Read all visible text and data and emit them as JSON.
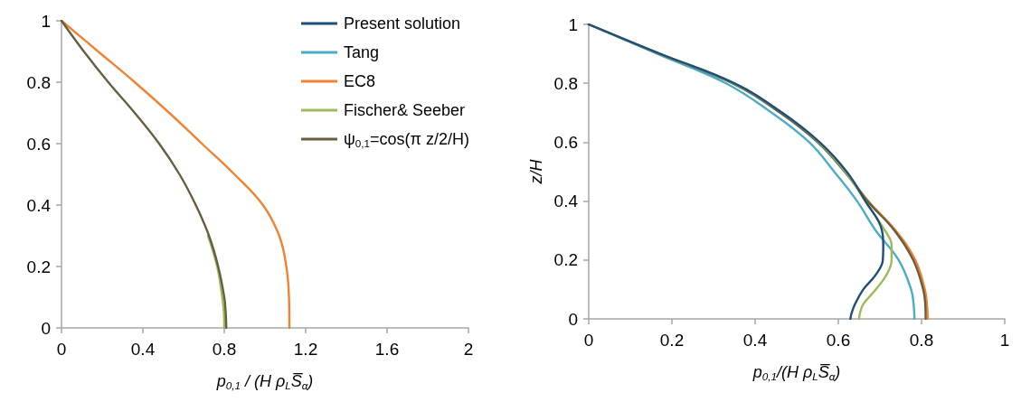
{
  "chart_data": [
    {
      "type": "line",
      "xlabel": "p$_{0,1}$ / (H ρ$_{L}$S̅$_{α}$)",
      "xlim": [
        0,
        2
      ],
      "xticks": [
        0,
        0.4,
        0.8,
        1.2,
        1.6,
        2
      ],
      "ylim": [
        0,
        1
      ],
      "yticks": [
        0,
        0.2,
        0.4,
        0.6,
        0.8,
        1
      ],
      "legend": "top right",
      "marker": "none",
      "series": [
        {
          "name": "Present solution",
          "color": "#1f4e79"
        },
        {
          "name": "Tang",
          "color": "#4bacc6"
        },
        {
          "name": "EC8",
          "color": "#f08232",
          "x": [
            0,
            0.18,
            0.36,
            0.53,
            0.69,
            0.85,
            0.99,
            1.07,
            1.105,
            1.118,
            1.12
          ],
          "values": [
            1,
            0.9,
            0.8,
            0.7,
            0.6,
            0.5,
            0.4,
            0.3,
            0.2,
            0.1,
            0
          ]
        },
        {
          "name": "Fischer& Seeber",
          "color": "#9bbb59",
          "x": [
            0.72,
            0.765,
            0.79,
            0.798,
            0.8
          ],
          "values": [
            0.3,
            0.2,
            0.1,
            0.05,
            0
          ]
        },
        {
          "name": "ψ$_{0,1}$=cos(π z/2/H)",
          "color": "#675e3f",
          "x": [
            0,
            0.11,
            0.23,
            0.36,
            0.48,
            0.58,
            0.66,
            0.725,
            0.77,
            0.8,
            0.807,
            0.81
          ],
          "values": [
            1,
            0.9,
            0.8,
            0.7,
            0.6,
            0.5,
            0.4,
            0.3,
            0.2,
            0.1,
            0.05,
            0
          ]
        }
      ]
    },
    {
      "type": "line",
      "xlabel": "p$_{0,1}$/(H ρ$_{L}$S̅$_{α}$)",
      "ylabel": "z/H",
      "xlim": [
        0,
        1
      ],
      "xticks": [
        0,
        0.2,
        0.4,
        0.6,
        0.8,
        1
      ],
      "ylim": [
        0,
        1
      ],
      "yticks": [
        0,
        0.2,
        0.4,
        0.6,
        0.8,
        1
      ],
      "marker": "none",
      "series": [
        {
          "color": "#4bacc6",
          "x": [
            0,
            0.165,
            0.33,
            0.44,
            0.53,
            0.59,
            0.645,
            0.69,
            0.745,
            0.775,
            0.781,
            0.783
          ],
          "values": [
            1,
            0.9,
            0.8,
            0.7,
            0.6,
            0.5,
            0.4,
            0.3,
            0.2,
            0.1,
            0.05,
            0
          ]
        },
        {
          "color": "#f08232",
          "x": [
            0.618,
            0.672,
            0.738,
            0.785,
            0.808,
            0.813,
            0.815
          ],
          "values": [
            0.5,
            0.4,
            0.3,
            0.2,
            0.1,
            0.05,
            0
          ]
        },
        {
          "color": "#675e3f",
          "x": [
            0,
            0.17,
            0.345,
            0.46,
            0.55,
            0.615,
            0.67,
            0.735,
            0.78,
            0.804,
            0.809,
            0.81
          ],
          "values": [
            1,
            0.9,
            0.8,
            0.7,
            0.6,
            0.5,
            0.4,
            0.3,
            0.2,
            0.1,
            0.05,
            0
          ]
        },
        {
          "color": "#9bbb59",
          "x": [
            0,
            0.17,
            0.348,
            0.465,
            0.553,
            0.617,
            0.665,
            0.712,
            0.728,
            0.728,
            0.716,
            0.69,
            0.66,
            0.652,
            0.65
          ],
          "values": [
            1,
            0.9,
            0.8,
            0.7,
            0.6,
            0.5,
            0.4,
            0.3,
            0.25,
            0.2,
            0.15,
            0.1,
            0.05,
            0.02,
            0
          ]
        },
        {
          "color": "#1f4e79",
          "x": [
            0,
            0.172,
            0.35,
            0.465,
            0.555,
            0.62,
            0.665,
            0.705,
            0.708,
            0.707,
            0.69,
            0.66,
            0.64,
            0.632,
            0.629
          ],
          "values": [
            1,
            0.9,
            0.8,
            0.7,
            0.6,
            0.5,
            0.4,
            0.3,
            0.25,
            0.2,
            0.15,
            0.1,
            0.05,
            0.02,
            0
          ]
        }
      ]
    }
  ]
}
